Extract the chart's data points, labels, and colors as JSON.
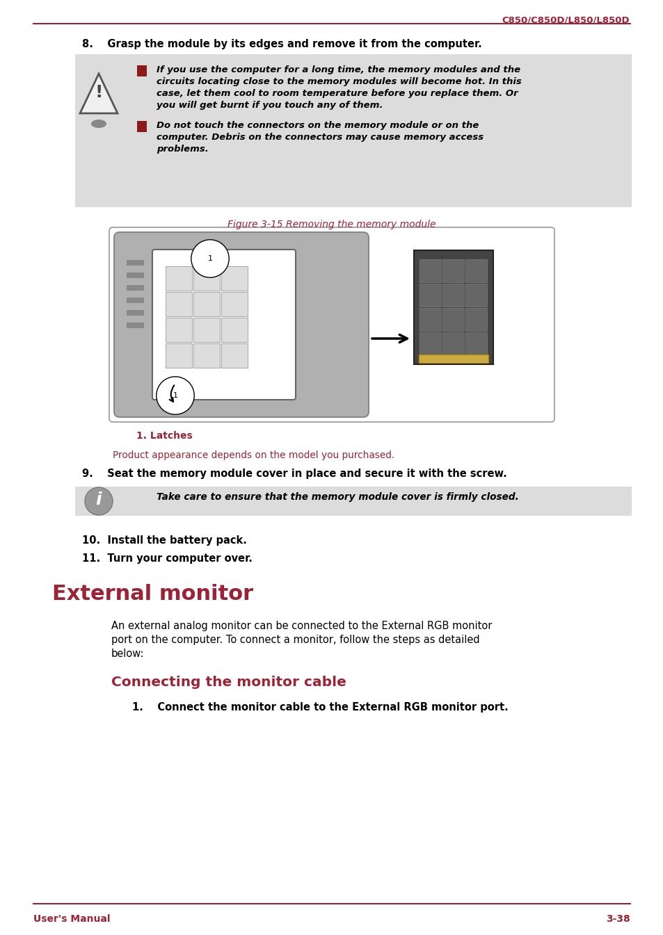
{
  "header_text": "C850/C850D/L850/L850D",
  "header_color": "#9B2335",
  "header_line_color": "#9B2335",
  "footer_left": "User's Manual",
  "footer_right": "3-38",
  "footer_color": "#9B2335",
  "footer_line_color": "#9B2335",
  "bg_color": "#ffffff",
  "warning_box_bg": "#dcdcdc",
  "info_box_bg": "#dcdcdc",
  "bullet_color": "#8B1A1A",
  "step8_text": "8.    Grasp the module by its edges and remove it from the computer.",
  "warning_lines1": [
    "If you use the computer for a long time, the memory modules and the",
    "circuits locating close to the memory modules will become hot. In this",
    "case, let them cool to room temperature before you replace them. Or",
    "you will get burnt if you touch any of them."
  ],
  "warning_lines2": [
    "Do not touch the connectors on the memory module or on the",
    "computer. Debris on the connectors may cause memory access",
    "problems."
  ],
  "figure_caption": "Figure 3-15 Removing the memory module",
  "figure_caption_color": "#9B2335",
  "latches_label": "1. Latches",
  "latches_color": "#9B2335",
  "product_note": "Product appearance depends on the model you purchased.",
  "product_note_color": "#9B2335",
  "step9_text": "9.    Seat the memory module cover in place and secure it with the screw.",
  "info_text": "Take care to ensure that the memory module cover is firmly closed.",
  "step10_text": "10.  Install the battery pack.",
  "step11_text": "11.  Turn your computer over.",
  "section_title": "External monitor",
  "section_title_color": "#9B2335",
  "section_lines": [
    "An external analog monitor can be connected to the External RGB monitor",
    "port on the computer. To connect a monitor, follow the steps as detailed",
    "below:"
  ],
  "subsection_title": "Connecting the monitor cable",
  "subsection_title_color": "#9B2335",
  "step1_text": "1.    Connect the monitor cable to the External RGB monitor port."
}
